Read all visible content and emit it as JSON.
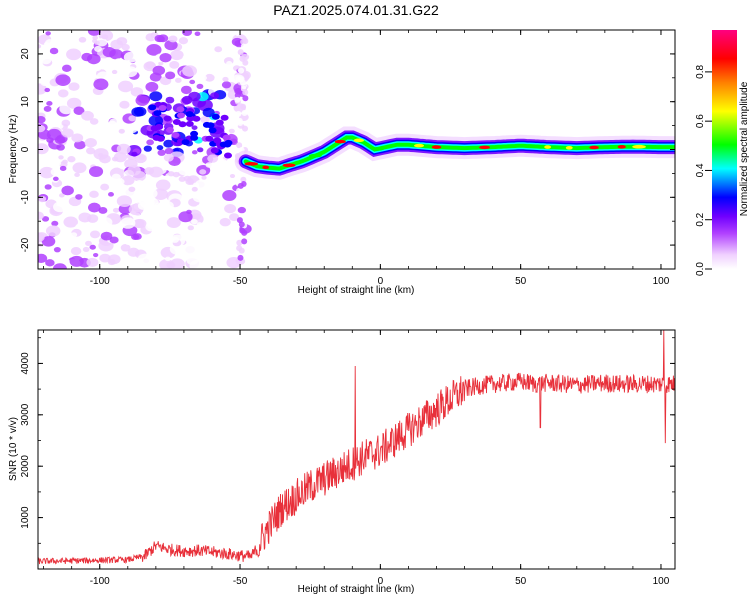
{
  "figure": {
    "title": "PAZ1.2025.074.01.31.G22"
  },
  "chart_data": [
    {
      "type": "heatmap",
      "title": "PAZ1.2025.074.01.31.G22",
      "xlabel": "Height of straight line (km)",
      "ylabel": "Frequency (Hz)",
      "xlim": [
        -122,
        105
      ],
      "ylim": [
        -25,
        25
      ],
      "xticks": [
        -100,
        -50,
        0,
        50,
        100
      ],
      "yticks": [
        -20,
        -10,
        0,
        10,
        20
      ],
      "xtick_labels": [
        "-100",
        "-50",
        "0",
        "50",
        "100"
      ],
      "ytick_labels": [
        "-20",
        "-10",
        "0",
        "10",
        "20"
      ],
      "colorbar": {
        "label": "Normalized spectral amplitude",
        "range": [
          0,
          0.97
        ],
        "ticks": [
          0.0,
          0.2,
          0.4,
          0.6,
          0.8
        ],
        "tick_labels": [
          "0.0",
          "0.2",
          "0.4",
          "0.6",
          "0.8"
        ],
        "colormap": "rainbow",
        "colors": [
          "#ffffff",
          "#f0d0ff",
          "#b040ff",
          "#7000ff",
          "#0000ff",
          "#00ffff",
          "#00ff00",
          "#ffff00",
          "#ff8000",
          "#ff0000",
          "#ff0080"
        ]
      },
      "ridge": {
        "x": [
          -48,
          -44,
          -40,
          -36,
          -32,
          -28,
          -24,
          -20,
          -16,
          -12,
          -10,
          -6,
          -2,
          2,
          6,
          10,
          20,
          30,
          40,
          50,
          60,
          70,
          80,
          90,
          100,
          105
        ],
        "y": [
          -2.5,
          -3.5,
          -3.8,
          -4.0,
          -3.2,
          -2.5,
          -1.5,
          -0.5,
          1.0,
          2.5,
          2.5,
          1.5,
          0.0,
          0.5,
          1.0,
          1.0,
          0.5,
          0.3,
          0.5,
          0.8,
          0.5,
          0.3,
          0.5,
          0.6,
          0.5,
          0.5
        ]
      }
    },
    {
      "type": "line",
      "xlabel": "Height of straight line (km)",
      "ylabel": "SNR (10 * v/v)",
      "xlim": [
        -122,
        105
      ],
      "ylim": [
        0,
        4650
      ],
      "xticks": [
        -100,
        -50,
        0,
        50,
        100
      ],
      "yticks": [
        1000,
        2000,
        3000,
        4000
      ],
      "xtick_labels": [
        "-100",
        "-50",
        "0",
        "50",
        "100"
      ],
      "ytick_labels": [
        "1000",
        "2000",
        "3000",
        "4000"
      ],
      "series": [
        {
          "color": "#e8303a",
          "x": [
            -122,
            -110,
            -100,
            -90,
            -84,
            -80,
            -75,
            -70,
            -65,
            -60,
            -55,
            -50,
            -46,
            -44,
            -40,
            -35,
            -30,
            -25,
            -20,
            -15,
            -10,
            -5,
            0,
            5,
            10,
            15,
            20,
            25,
            30,
            35,
            40,
            45,
            50,
            55,
            60,
            65,
            70,
            75,
            80,
            85,
            90,
            95,
            100,
            105
          ],
          "y": [
            150,
            160,
            170,
            180,
            250,
            450,
            380,
            350,
            360,
            330,
            300,
            260,
            240,
            400,
            800,
            1200,
            1400,
            1600,
            1750,
            1900,
            2050,
            2200,
            2300,
            2500,
            2700,
            2900,
            3100,
            3300,
            3500,
            3560,
            3600,
            3620,
            3650,
            3600,
            3620,
            3600,
            3580,
            3600,
            3620,
            3600,
            3600,
            3600,
            3600,
            3600
          ],
          "spikes": [
            {
              "x": -9,
              "y": 3950
            },
            {
              "x": 57,
              "y": 2750
            },
            {
              "x": 101,
              "y": 4650
            },
            {
              "x": 101.5,
              "y": 2450
            }
          ]
        }
      ]
    }
  ]
}
